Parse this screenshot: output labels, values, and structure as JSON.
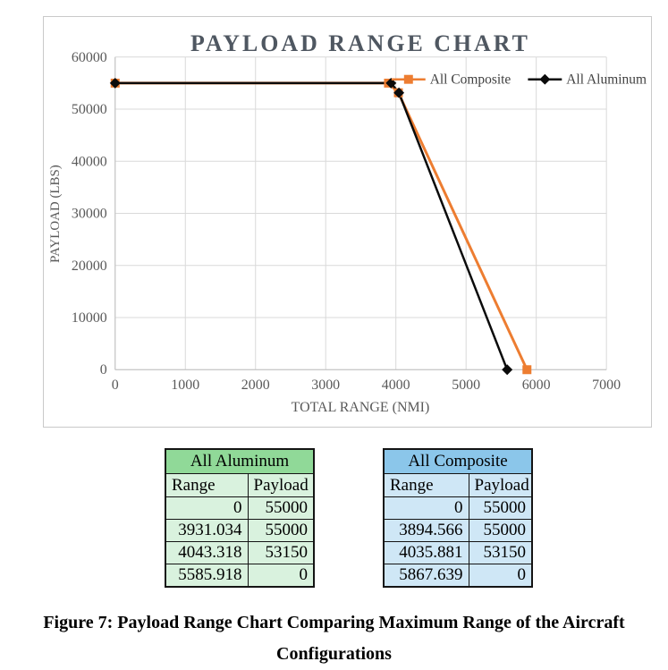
{
  "chart_data": {
    "type": "line",
    "title": "PAYLOAD RANGE CHART",
    "xlabel": "TOTAL RANGE (NMI)",
    "ylabel": "PAYLOAD (LBS)",
    "xlim": [
      0,
      7000
    ],
    "ylim": [
      0,
      60000
    ],
    "x_ticks": [
      0,
      1000,
      2000,
      3000,
      4000,
      5000,
      6000,
      7000
    ],
    "y_ticks": [
      0,
      10000,
      20000,
      30000,
      40000,
      50000,
      60000
    ],
    "grid": true,
    "legend_position": "inside-top-right",
    "series": [
      {
        "name": "All Composite",
        "color": "#ED7D31",
        "marker": "square",
        "line_width": 3,
        "x": [
          0,
          3894.566,
          4035.881,
          5867.639
        ],
        "y": [
          55000,
          55000,
          53150,
          0
        ]
      },
      {
        "name": "All Aluminum",
        "color": "#0B0B0B",
        "marker": "diamond",
        "line_width": 2.5,
        "x": [
          0,
          3931.034,
          4043.318,
          5585.918
        ],
        "y": [
          55000,
          55000,
          53150,
          0
        ]
      }
    ]
  },
  "tables": [
    {
      "title": "All Aluminum",
      "columns": [
        "Range",
        "Payload"
      ],
      "rows": [
        [
          "0",
          "55000"
        ],
        [
          "3931.034",
          "55000"
        ],
        [
          "4043.318",
          "53150"
        ],
        [
          "5585.918",
          "0"
        ]
      ],
      "header_bg": "#90D998",
      "cell_bg": "#D9F2DE"
    },
    {
      "title": "All Composite",
      "columns": [
        "Range",
        "Payload"
      ],
      "rows": [
        [
          "0",
          "55000"
        ],
        [
          "3894.566",
          "55000"
        ],
        [
          "4035.881",
          "53150"
        ],
        [
          "5867.639",
          "0"
        ]
      ],
      "header_bg": "#8BC6EA",
      "cell_bg": "#CFE7F6"
    }
  ],
  "caption": {
    "line1": "Figure 7: Payload Range Chart Comparing Maximum Range of the Aircraft",
    "line2": "Configurations"
  },
  "style": {
    "title_color": "#4F5761",
    "axis_text_color": "#595959",
    "legend_text_color": "#404040",
    "gridline_color": "#D9D9D9",
    "axis_line_color": "#BFBFBF",
    "chart_border_color": "#C9C9C9"
  }
}
